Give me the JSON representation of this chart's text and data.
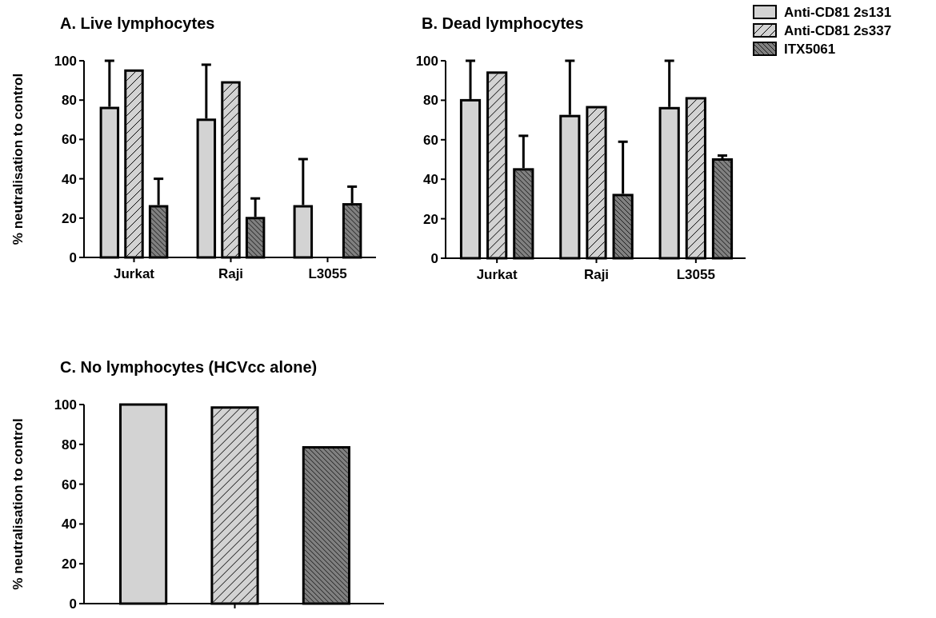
{
  "chart_data": [
    {
      "type": "bar",
      "title": "A. Live lymphocytes",
      "ylabel": "% neutralisation to control",
      "categories": [
        "Jurkat",
        "Raji",
        "L3055"
      ],
      "ylim": [
        0,
        100
      ],
      "yticks": [
        0,
        20,
        40,
        60,
        80,
        100
      ],
      "legend": false,
      "series": [
        {
          "color": "#d3d3d3",
          "values": [
            76,
            70,
            26
          ],
          "errors": [
            24,
            28,
            24
          ]
        },
        {
          "color": "#d3d3d3",
          "values": [
            95,
            89,
            null
          ],
          "errors": [
            null,
            null,
            null
          ]
        },
        {
          "color": "#808080",
          "values": [
            26,
            20,
            27
          ],
          "errors": [
            14,
            10,
            9
          ]
        }
      ]
    },
    {
      "type": "bar",
      "title": "B. Dead lymphocytes",
      "categories": [
        "Jurkat",
        "Raji",
        "L3055"
      ],
      "ylim": [
        0,
        100
      ],
      "yticks": [
        0,
        20,
        40,
        60,
        80,
        100
      ],
      "legend": "right",
      "series": [
        {
          "name": "Anti-CD81 2s131",
          "color": "#d3d3d3",
          "values": [
            80,
            72,
            76
          ],
          "errors": [
            20,
            28,
            24
          ]
        },
        {
          "name": "Anti-CD81 2s337",
          "color": "#d3d3d3",
          "values": [
            94,
            76.5,
            81
          ],
          "errors": [
            null,
            null,
            null
          ]
        },
        {
          "name": "ITX5061",
          "color": "#808080",
          "values": [
            45,
            32,
            50
          ],
          "errors": [
            17,
            27,
            2
          ]
        }
      ]
    },
    {
      "type": "bar",
      "title": "C. No lymphocytes (HCVcc alone)",
      "ylabel": "% neutralisation to control",
      "categories": [
        null
      ],
      "ylim": [
        0,
        100
      ],
      "yticks": [
        0,
        20,
        40,
        60,
        80,
        100
      ],
      "legend": false,
      "series": [
        {
          "color": "#d3d3d3",
          "values": [
            100
          ]
        },
        {
          "color": "#d3d3d3",
          "values": [
            98.5
          ]
        },
        {
          "color": "#808080",
          "values": [
            78.5
          ]
        }
      ]
    }
  ]
}
